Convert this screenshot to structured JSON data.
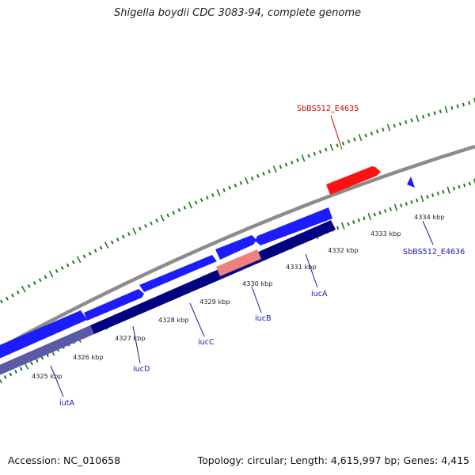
{
  "title": "Shigella boydii CDC 3083-94, complete genome",
  "footer": {
    "accession": "Accession: NC_010658",
    "summary": "Topology: circular; Length: 4,615,997 bp; Genes: 4,415"
  },
  "colors": {
    "backbone": "#8c8c8c",
    "tick": "#1f7a1f",
    "gene_forward": "#1c1cff",
    "gene_reverse": "#000080",
    "highlight_top": "#ff1111",
    "highlight_bottom": "#f08080",
    "label_blue": "#1a1aaa",
    "label_red": "#cc0000"
  },
  "scale": {
    "unit": "kbp",
    "labels": [
      "4325 kbp",
      "4326 kbp",
      "4327 kbp",
      "4328 kbp",
      "4329 kbp",
      "4330 kbp",
      "4331 kbp",
      "4332 kbp",
      "4333 kbp",
      "4334 kbp"
    ]
  },
  "genes": [
    {
      "name": "iutA"
    },
    {
      "name": "iucD"
    },
    {
      "name": "iucC"
    },
    {
      "name": "iucB"
    },
    {
      "name": "iucA"
    },
    {
      "name": "SbBS512_E4635"
    },
    {
      "name": "SbBS512_E4636"
    }
  ]
}
